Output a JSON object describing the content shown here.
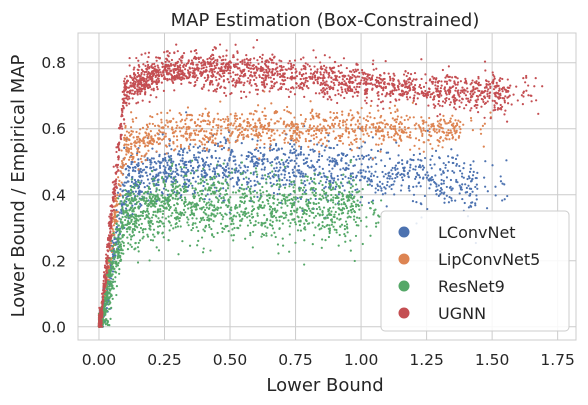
{
  "chart_data": {
    "type": "scatter",
    "title": "MAP Estimation (Box-Constrained)",
    "xlabel": "Lower Bound",
    "ylabel": "Lower Bound / Empirical MAP",
    "xlim": [
      -0.08,
      1.82
    ],
    "ylim": [
      -0.04,
      0.89
    ],
    "xticks": [
      0.0,
      0.25,
      0.5,
      0.75,
      1.0,
      1.25,
      1.5,
      1.75
    ],
    "xtick_labels": [
      "0.00",
      "0.25",
      "0.50",
      "0.75",
      "1.00",
      "1.25",
      "1.50",
      "1.75"
    ],
    "yticks": [
      0.0,
      0.2,
      0.4,
      0.6,
      0.8
    ],
    "ytick_labels": [
      "0.0",
      "0.2",
      "0.4",
      "0.6",
      "0.8"
    ],
    "grid": true,
    "legend_position": "lower-right",
    "series": [
      {
        "name": "LConvNet",
        "color": "#4c72b0",
        "plateau": 0.48,
        "rise_rate": 0.08,
        "spread": 0.045,
        "x_range": [
          0.0,
          1.57
        ],
        "trend_points": [
          [
            0.0,
            0.0
          ],
          [
            0.1,
            0.43
          ],
          [
            0.25,
            0.47
          ],
          [
            0.5,
            0.48
          ],
          [
            0.75,
            0.48
          ],
          [
            1.0,
            0.47
          ],
          [
            1.25,
            0.45
          ],
          [
            1.5,
            0.44
          ]
        ]
      },
      {
        "name": "LipConvNet5",
        "color": "#dd8452",
        "plateau": 0.6,
        "rise_rate": 0.06,
        "spread": 0.03,
        "x_range": [
          0.0,
          1.5
        ],
        "trend_points": [
          [
            0.0,
            0.0
          ],
          [
            0.1,
            0.55
          ],
          [
            0.25,
            0.59
          ],
          [
            0.5,
            0.6
          ],
          [
            0.75,
            0.6
          ],
          [
            1.0,
            0.6
          ],
          [
            1.25,
            0.6
          ],
          [
            1.5,
            0.6
          ]
        ]
      },
      {
        "name": "ResNet9",
        "color": "#55a868",
        "plateau": 0.37,
        "rise_rate": 0.06,
        "spread": 0.05,
        "x_range": [
          0.0,
          1.08
        ],
        "trend_points": [
          [
            0.0,
            0.0
          ],
          [
            0.1,
            0.33
          ],
          [
            0.25,
            0.37
          ],
          [
            0.5,
            0.37
          ],
          [
            0.75,
            0.36
          ],
          [
            1.0,
            0.36
          ]
        ]
      },
      {
        "name": "UGNN",
        "color": "#c44e52",
        "plateau": 0.77,
        "rise_rate": 0.05,
        "spread": 0.028,
        "x_range": [
          0.0,
          1.7
        ],
        "trend_points": [
          [
            0.0,
            0.0
          ],
          [
            0.1,
            0.72
          ],
          [
            0.25,
            0.78
          ],
          [
            0.5,
            0.78
          ],
          [
            0.75,
            0.76
          ],
          [
            1.0,
            0.74
          ],
          [
            1.25,
            0.72
          ],
          [
            1.5,
            0.71
          ],
          [
            1.7,
            0.7
          ]
        ]
      }
    ]
  }
}
